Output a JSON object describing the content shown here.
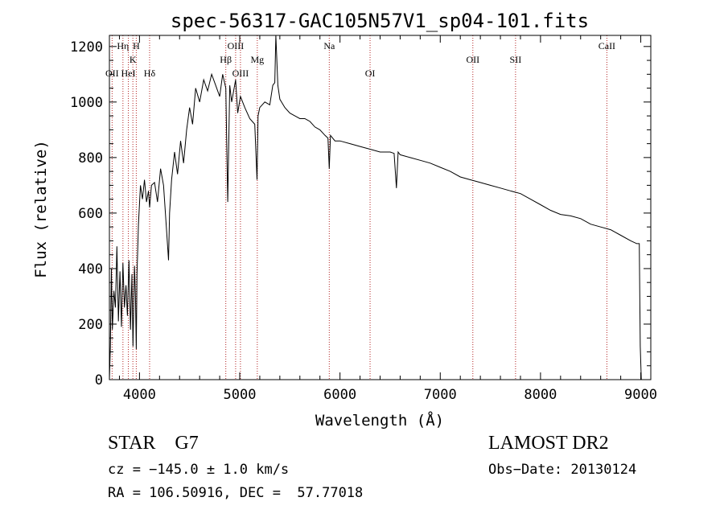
{
  "chart_data": {
    "type": "line",
    "title": "spec-56317-GAC105N57V1_sp04-101.fits",
    "xlabel": "Wavelength (Å)",
    "ylabel": "Flux (relative)",
    "xlim": [
      3700,
      9100
    ],
    "ylim": [
      0,
      1240
    ],
    "xticks": [
      4000,
      5000,
      6000,
      7000,
      8000,
      9000
    ],
    "xtick_labels": [
      "4000",
      "5000",
      "6000",
      "7000",
      "8000",
      "9000"
    ],
    "yticks": [
      0,
      200,
      400,
      600,
      800,
      1000,
      1200
    ],
    "ytick_labels": [
      "0",
      "200",
      "400",
      "600",
      "800",
      "1000",
      "1200"
    ],
    "grid": false,
    "line_color": "#000000",
    "marker_color": "#b22222",
    "spectrum": {
      "x": [
        3700,
        3710,
        3720,
        3730,
        3745,
        3760,
        3775,
        3790,
        3805,
        3820,
        3835,
        3850,
        3865,
        3880,
        3895,
        3910,
        3925,
        3935,
        3950,
        3960,
        3968,
        3975,
        3990,
        4010,
        4030,
        4050,
        4070,
        4090,
        4101,
        4120,
        4150,
        4180,
        4210,
        4240,
        4270,
        4290,
        4300,
        4320,
        4350,
        4380,
        4410,
        4440,
        4470,
        4500,
        4530,
        4560,
        4600,
        4640,
        4680,
        4720,
        4760,
        4800,
        4830,
        4861,
        4880,
        4900,
        4920,
        4959,
        4980,
        5007,
        5050,
        5100,
        5150,
        5172,
        5183,
        5200,
        5250,
        5300,
        5330,
        5350,
        5360,
        5380,
        5400,
        5450,
        5500,
        5550,
        5600,
        5650,
        5700,
        5750,
        5800,
        5850,
        5880,
        5893,
        5905,
        5950,
        6000,
        6100,
        6200,
        6300,
        6400,
        6500,
        6540,
        6563,
        6580,
        6600,
        6700,
        6800,
        6900,
        7000,
        7100,
        7200,
        7300,
        7400,
        7500,
        7600,
        7700,
        7800,
        7900,
        8000,
        8100,
        8200,
        8300,
        8400,
        8500,
        8600,
        8700,
        8800,
        8900,
        8960,
        8985,
        8995,
        9005
      ],
      "y": [
        0,
        120,
        400,
        180,
        320,
        260,
        480,
        210,
        390,
        190,
        420,
        260,
        340,
        230,
        430,
        180,
        380,
        120,
        410,
        300,
        110,
        380,
        560,
        700,
        650,
        720,
        640,
        680,
        620,
        700,
        710,
        640,
        760,
        700,
        540,
        430,
        600,
        720,
        820,
        740,
        860,
        780,
        900,
        980,
        920,
        1050,
        1000,
        1080,
        1040,
        1100,
        1060,
        1020,
        1100,
        1050,
        640,
        1060,
        1000,
        1080,
        960,
        1020,
        980,
        940,
        920,
        720,
        950,
        980,
        1000,
        990,
        1060,
        1070,
        1240,
        1060,
        1010,
        980,
        960,
        950,
        940,
        940,
        930,
        910,
        900,
        880,
        870,
        760,
        880,
        860,
        860,
        850,
        840,
        830,
        820,
        820,
        815,
        690,
        820,
        810,
        800,
        790,
        780,
        765,
        750,
        730,
        720,
        710,
        700,
        690,
        680,
        670,
        650,
        630,
        610,
        595,
        590,
        580,
        560,
        550,
        540,
        520,
        500,
        490,
        490,
        120,
        0
      ]
    },
    "lines": [
      {
        "name": "OII",
        "x": 3727,
        "row": 3
      },
      {
        "name": "Hη",
        "x": 3835,
        "row": 1
      },
      {
        "name": "HeI",
        "x": 3889,
        "row": 3
      },
      {
        "name": "K",
        "x": 3934,
        "row": 2
      },
      {
        "name": "H",
        "x": 3968,
        "row": 1
      },
      {
        "name": "Hδ",
        "x": 4101,
        "row": 3
      },
      {
        "name": "Hβ",
        "x": 4861,
        "row": 2
      },
      {
        "name": "OIII",
        "x": 4959,
        "row": 1
      },
      {
        "name": "OIII",
        "x": 5007,
        "row": 3
      },
      {
        "name": "Mg",
        "x": 5175,
        "row": 2
      },
      {
        "name": "Na",
        "x": 5893,
        "row": 1
      },
      {
        "name": "OI",
        "x": 6300,
        "row": 3
      },
      {
        "name": "OII",
        "x": 7325,
        "row": 2
      },
      {
        "name": "SII",
        "x": 7751,
        "row": 2
      },
      {
        "name": "CaII",
        "x": 8662,
        "row": 1
      }
    ]
  },
  "info": {
    "class_text": "STAR    G7",
    "survey": "LAMOST DR2",
    "cz": "cz = −145.0 ± 1.0 km/s",
    "obs_date": "Obs−Date: 20130124",
    "radec": "RA = 106.50916, DEC =  57.77018"
  }
}
